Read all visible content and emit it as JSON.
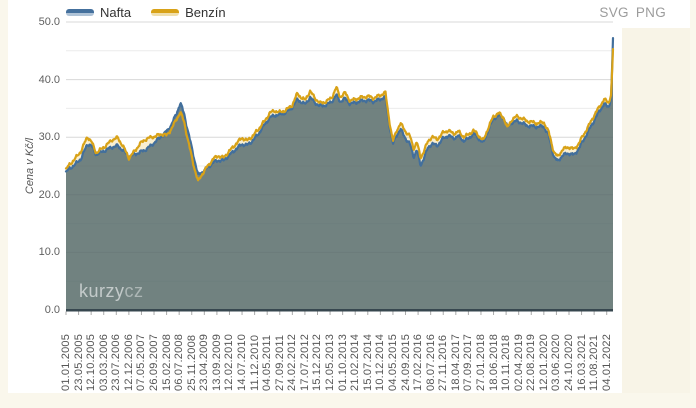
{
  "page": {
    "background": "#FAF7EC",
    "card_background": "#FFFFFF"
  },
  "export_links": {
    "svg": "SVG",
    "png": "PNG"
  },
  "legend": {
    "items": [
      {
        "label": "Nafta",
        "color": "#44709D"
      },
      {
        "label": "Benzín",
        "color": "#D8A218"
      }
    ]
  },
  "watermark": {
    "brand": "kurzy",
    "suffix": "cz"
  },
  "chart_data": {
    "type": "area",
    "title": "",
    "xlabel": "",
    "ylabel": "Cena v Kč/l",
    "ylim": [
      0,
      50
    ],
    "grid": true,
    "legend_position": "top-left",
    "y_tick_values": [
      0,
      10,
      20,
      30,
      40,
      50
    ],
    "y_tick_labels": [
      "0.0",
      "10.0",
      "20.0",
      "30.0",
      "40.0",
      "50.0"
    ],
    "y_minor_step": 5,
    "x_tick_labels": [
      "01.01.2005",
      "23.05.2005",
      "12.10.2005",
      "03.03.2006",
      "23.07.2006",
      "12.12.2006",
      "07.05.2007",
      "26.09.2007",
      "15.02.2008",
      "06.07.2008",
      "25.11.2008",
      "23.04.2009",
      "13.09.2009",
      "12.02.2010",
      "14.07.2010",
      "11.12.2010",
      "04.05.2011",
      "27.09.2011",
      "24.02.2012",
      "17.07.2012",
      "15.12.2012",
      "12.05.2013",
      "01.10.2013",
      "21.02.2014",
      "15.07.2014",
      "10.12.2014",
      "04.05.2015",
      "24.09.2015",
      "17.02.2016",
      "08.07.2016",
      "27.11.2016",
      "18.04.2017",
      "07.09.2017",
      "27.01.2018",
      "18.06.2018",
      "10.11.2018",
      "02.04.2019",
      "22.08.2019",
      "12.01.2020",
      "03.06.2020",
      "24.10.2020",
      "16.03.2021",
      "11.08.2021",
      "04.01.2022"
    ],
    "x_range": [
      0,
      43.5
    ],
    "t": [
      0,
      0.3,
      0.7,
      1.2,
      1.7,
      2.0,
      2.4,
      2.8,
      3.2,
      3.7,
      4.1,
      4.5,
      5.0,
      5.4,
      5.9,
      6.3,
      6.8,
      7.2,
      7.6,
      8.0,
      8.4,
      8.8,
      9.1,
      9.4,
      9.7,
      10.1,
      10.5,
      10.8,
      11.2,
      11.7,
      12.1,
      12.5,
      13.0,
      13.5,
      14.0,
      14.4,
      14.9,
      15.3,
      15.8,
      16.2,
      16.6,
      17.0,
      17.5,
      18.0,
      18.4,
      18.7,
      19.0,
      19.4,
      19.8,
      20.2,
      20.7,
      21.1,
      21.5,
      21.8,
      22.2,
      22.6,
      23.0,
      23.5,
      24.0,
      24.5,
      25.0,
      25.4,
      25.7,
      26.0,
      26.3,
      26.6,
      27.0,
      27.35,
      27.65,
      27.9,
      28.2,
      28.5,
      28.8,
      29.1,
      29.5,
      30.0,
      30.4,
      30.8,
      31.2,
      31.6,
      32.0,
      32.4,
      32.8,
      33.2,
      33.6,
      34.0,
      34.4,
      34.8,
      35.1,
      35.5,
      35.9,
      36.3,
      36.7,
      37.1,
      37.5,
      38.0,
      38.4,
      38.8,
      39.1,
      39.5,
      40.0,
      40.4,
      40.8,
      41.2,
      41.6,
      42.0,
      42.4,
      42.8,
      43.0,
      43.2,
      43.35,
      43.5
    ],
    "series": [
      {
        "name": "Nafta",
        "line_color": "#426F9C",
        "fill_color": "rgba(74,99,105,0.78)",
        "values": [
          23.9,
          24.6,
          25.2,
          26.3,
          28.8,
          28.6,
          27.0,
          27.4,
          27.8,
          28.3,
          28.5,
          27.8,
          26.6,
          27.0,
          27.4,
          27.8,
          28.6,
          29.4,
          30.2,
          31.0,
          32.2,
          34.2,
          35.9,
          34.0,
          31.0,
          27.2,
          23.4,
          23.9,
          24.6,
          25.6,
          26.0,
          25.9,
          26.9,
          27.9,
          28.8,
          28.6,
          29.5,
          30.6,
          32.2,
          33.4,
          33.8,
          33.9,
          34.3,
          35.2,
          36.6,
          36.1,
          35.7,
          36.9,
          36.0,
          35.4,
          35.6,
          36.1,
          37.3,
          36.2,
          36.7,
          35.8,
          36.0,
          36.3,
          36.4,
          36.2,
          36.6,
          37.0,
          32.4,
          28.8,
          30.4,
          31.4,
          29.8,
          28.8,
          26.6,
          27.8,
          25.1,
          26.6,
          28.2,
          28.9,
          28.5,
          29.8,
          30.3,
          29.8,
          30.2,
          29.4,
          29.7,
          30.7,
          29.8,
          29.0,
          31.4,
          33.2,
          33.8,
          33.4,
          31.8,
          32.6,
          32.8,
          32.4,
          32.0,
          31.9,
          31.8,
          31.9,
          30.2,
          26.6,
          25.8,
          26.9,
          27.2,
          26.9,
          28.1,
          29.7,
          31.3,
          32.9,
          34.5,
          35.8,
          35.4,
          35.3,
          36.8,
          47.2
        ]
      },
      {
        "name": "Benzín",
        "line_color": "#D8A218",
        "fill_color": "rgba(233,196,94,0.28)",
        "values": [
          24.4,
          25.3,
          26.2,
          27.6,
          30.1,
          29.3,
          27.3,
          27.9,
          28.6,
          29.6,
          29.9,
          28.6,
          26.4,
          27.4,
          28.9,
          29.6,
          30.0,
          30.2,
          30.6,
          30.3,
          31.5,
          33.2,
          34.3,
          32.6,
          29.5,
          25.6,
          22.3,
          23.5,
          24.8,
          26.2,
          26.8,
          26.4,
          27.6,
          28.8,
          29.9,
          29.4,
          30.3,
          31.4,
          32.8,
          34.2,
          34.6,
          34.3,
          34.7,
          35.6,
          37.6,
          36.9,
          36.4,
          38.0,
          36.8,
          35.9,
          36.2,
          36.8,
          38.6,
          37.0,
          37.7,
          36.3,
          36.6,
          36.9,
          37.1,
          36.8,
          37.3,
          37.8,
          33.0,
          29.3,
          31.2,
          32.4,
          31.0,
          30.2,
          28.0,
          29.2,
          26.4,
          27.8,
          29.3,
          30.1,
          29.6,
          30.8,
          31.2,
          30.6,
          31.0,
          30.1,
          30.4,
          31.2,
          30.3,
          29.4,
          31.8,
          33.6,
          34.2,
          33.4,
          31.6,
          33.2,
          33.6,
          33.2,
          32.8,
          32.6,
          32.4,
          32.6,
          30.8,
          27.4,
          26.6,
          27.9,
          28.3,
          27.9,
          29.0,
          30.6,
          32.1,
          33.8,
          35.2,
          36.6,
          36.2,
          36.0,
          37.4,
          45.3
        ]
      }
    ],
    "axis_color": "#37474F",
    "grid_major_color": "#D8D8D8",
    "grid_minor_color": "#ECECEC"
  }
}
